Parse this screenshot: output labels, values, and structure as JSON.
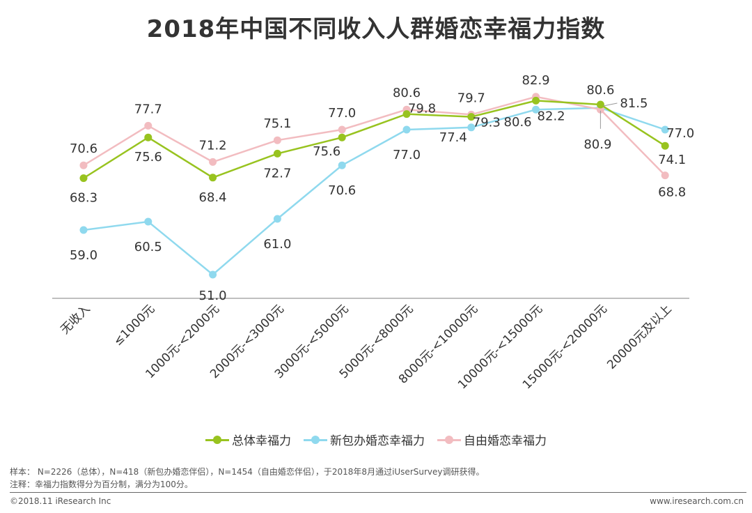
{
  "title": "2018年中国不同收入人群婚恋幸福力指数",
  "chart_data": {
    "type": "line",
    "title": "2018年中国不同收入人群婚恋幸福力指数",
    "xlabel": "",
    "ylabel": "",
    "categories": [
      "无收入",
      "≤1000元",
      "1000元-<2000元",
      "2000元-<3000元",
      "3000元-<5000元",
      "5000元-<8000元",
      "8000元-<10000元",
      "10000元-<15000元",
      "15000元-<20000元",
      "20000元及以上"
    ],
    "ylim": [
      50,
      84
    ],
    "grid": false,
    "legend": "bottom",
    "series": [
      {
        "name": "总体幸福力",
        "color": "#98c31f",
        "values": [
          68.3,
          75.6,
          68.4,
          72.7,
          75.6,
          79.8,
          79.3,
          82.2,
          81.5,
          74.1
        ],
        "labels": [
          "68.3",
          "75.6",
          "68.4",
          "72.7",
          "75.6",
          "79.8",
          "79.3",
          "82.2",
          "81.5",
          "74.1"
        ]
      },
      {
        "name": "新包办婚恋幸福力",
        "color": "#8fd9ee",
        "values": [
          59.0,
          60.5,
          51.0,
          61.0,
          70.6,
          77.0,
          77.4,
          80.6,
          80.9,
          77.0
        ],
        "labels": [
          "59.0",
          "60.5",
          "51.0",
          "61.0",
          "70.6",
          "77.0",
          "77.4",
          "80.6",
          "80.9",
          "77.0"
        ]
      },
      {
        "name": "自由婚恋幸福力",
        "color": "#f2bcc0",
        "values": [
          70.6,
          77.7,
          71.2,
          75.1,
          77.0,
          80.6,
          79.7,
          82.9,
          80.6,
          68.8
        ],
        "labels": [
          "70.6",
          "77.7",
          "71.2",
          "75.1",
          "77.0",
          "80.6",
          "79.7",
          "82.9",
          "80.6",
          "68.8"
        ]
      }
    ]
  },
  "notes": {
    "sample": "样本： N=2226（总体），N=418（新包办婚恋伴侣），N=1454（自由婚恋伴侣），于2018年8月通过iUserSurvey调研获得。",
    "comment": "注释：幸福力指数得分为百分制，满分为100分。"
  },
  "footer": {
    "copyright": "©2018.11 iResearch Inc",
    "website": "www.iresearch.com.cn"
  }
}
